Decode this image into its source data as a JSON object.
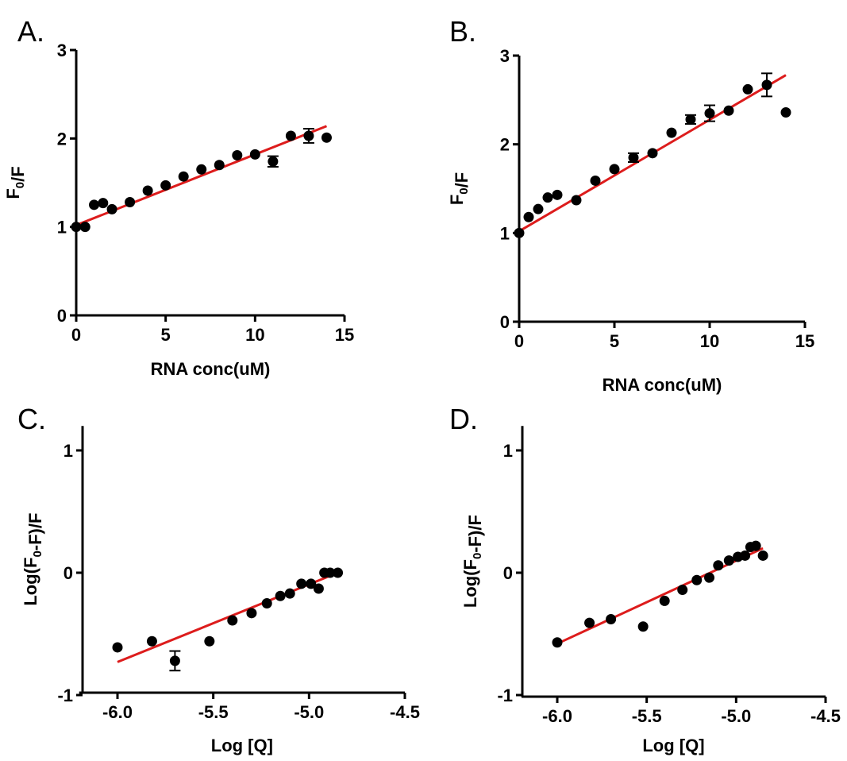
{
  "figure": {
    "colors": {
      "points": "#000000",
      "fit_line": "#dd1c1c",
      "axes": "#000000"
    }
  },
  "chart_data": [
    {
      "panel": "A.",
      "type": "scatter",
      "xlabel": "RNA conc(uM)",
      "ylabel": "F0/F",
      "xlim": [
        0,
        15
      ],
      "ylim": [
        0,
        3
      ],
      "xticks": [
        0,
        5,
        10,
        15
      ],
      "yticks": [
        0,
        1,
        2,
        3
      ],
      "grid": false,
      "x": [
        0,
        0.5,
        1,
        1.5,
        2,
        3,
        4,
        5,
        6,
        7,
        8,
        9,
        10,
        11,
        12,
        13,
        14
      ],
      "y": [
        1.0,
        1.0,
        1.25,
        1.27,
        1.2,
        1.28,
        1.41,
        1.47,
        1.57,
        1.65,
        1.7,
        1.81,
        1.82,
        1.74,
        2.03,
        2.03,
        2.01
      ],
      "error": [
        0,
        0,
        0,
        0,
        0,
        0,
        0,
        0,
        0,
        0,
        0,
        0,
        0,
        0.06,
        0,
        0.08,
        0
      ],
      "fit": {
        "x": [
          0,
          14
        ],
        "y": [
          1.02,
          2.14
        ]
      }
    },
    {
      "panel": "B.",
      "type": "scatter",
      "xlabel": "RNA conc(uM)",
      "ylabel": "F0/F",
      "xlim": [
        0,
        15
      ],
      "ylim": [
        0,
        3
      ],
      "xticks": [
        0,
        5,
        10,
        15
      ],
      "yticks": [
        0,
        1,
        2,
        3
      ],
      "grid": false,
      "x": [
        0,
        0.5,
        1,
        1.5,
        2,
        3,
        4,
        5,
        6,
        7,
        8,
        9,
        10,
        11,
        12,
        13,
        14
      ],
      "y": [
        1.0,
        1.18,
        1.27,
        1.4,
        1.43,
        1.37,
        1.59,
        1.72,
        1.85,
        1.9,
        2.13,
        2.28,
        2.35,
        2.38,
        2.62,
        2.67,
        2.36
      ],
      "error": [
        0,
        0,
        0,
        0,
        0,
        0,
        0,
        0,
        0.05,
        0,
        0,
        0.05,
        0.09,
        0,
        0,
        0.13,
        0
      ],
      "fit": {
        "x": [
          0,
          14
        ],
        "y": [
          1.02,
          2.78
        ]
      }
    },
    {
      "panel": "C.",
      "type": "scatter",
      "xlabel": "Log [Q]",
      "ylabel": "Log(F0-F)/F",
      "xlim": [
        -6.2,
        -4.5
      ],
      "ylim": [
        -1.5,
        1.2
      ],
      "xticks": [
        -6.0,
        -5.5,
        -5.0,
        -4.5
      ],
      "yticks": [
        -1,
        0,
        1
      ],
      "grid": false,
      "x": [
        -6.0,
        -5.82,
        -5.7,
        -5.52,
        -5.4,
        -5.3,
        -5.22,
        -5.15,
        -5.1,
        -5.04,
        -4.99,
        -4.95,
        -4.92,
        -4.89,
        -4.85
      ],
      "y": [
        -0.61,
        -0.56,
        -0.72,
        -0.56,
        -0.39,
        -0.33,
        -0.25,
        -0.19,
        -0.17,
        -0.09,
        -0.09,
        -0.13,
        0.0,
        0.0,
        0.0
      ],
      "error": [
        0,
        0,
        0.08,
        0,
        0,
        0,
        0,
        0,
        0,
        0,
        0,
        0,
        0,
        0,
        0
      ],
      "fit": {
        "x": [
          -6.0,
          -4.85
        ],
        "y": [
          -0.73,
          0.0
        ]
      }
    },
    {
      "panel": "D.",
      "type": "scatter",
      "xlabel": "Log [Q]",
      "ylabel": "Log(F0-F)/F",
      "xlim": [
        -6.2,
        -4.5
      ],
      "ylim": [
        -1.5,
        1.2
      ],
      "xticks": [
        -6.0,
        -5.5,
        -5.0,
        -4.5
      ],
      "yticks": [
        -1,
        0,
        1
      ],
      "grid": false,
      "x": [
        -6.0,
        -5.82,
        -5.7,
        -5.52,
        -5.4,
        -5.3,
        -5.22,
        -5.15,
        -5.1,
        -5.04,
        -4.99,
        -4.95,
        -4.92,
        -4.89,
        -4.85
      ],
      "y": [
        -0.57,
        -0.41,
        -0.38,
        -0.44,
        -0.23,
        -0.14,
        -0.06,
        -0.04,
        0.06,
        0.1,
        0.13,
        0.14,
        0.21,
        0.22,
        0.14
      ],
      "error": [
        0,
        0,
        0,
        0,
        0,
        0,
        0,
        0,
        0,
        0,
        0,
        0,
        0,
        0,
        0
      ],
      "fit": {
        "x": [
          -6.0,
          -4.85
        ],
        "y": [
          -0.58,
          0.2
        ]
      }
    }
  ]
}
